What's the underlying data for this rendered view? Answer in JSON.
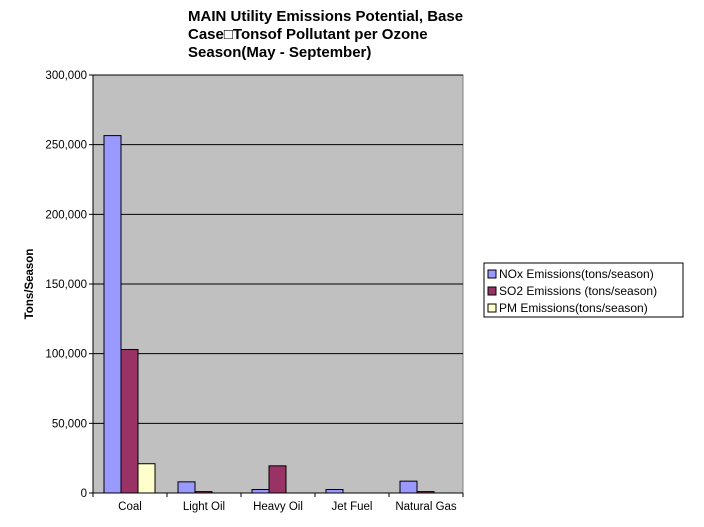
{
  "chart_data": {
    "type": "bar",
    "title_lines": [
      "MAIN Utility Emissions Potential, Base",
      "Case□Tonsof Pollutant per Ozone",
      "Season(May - September)"
    ],
    "title": "MAIN Utility Emissions Potential, Base Case□Tonsof Pollutant per Ozone Season(May - September)",
    "xlabel": "",
    "ylabel": "Tons/Season",
    "ylim": [
      0,
      300000
    ],
    "yticks": [
      0,
      50000,
      100000,
      150000,
      200000,
      250000,
      300000
    ],
    "ytick_labels": [
      "0",
      "50,000",
      "100,000",
      "150,000",
      "200,000",
      "250,000",
      "300,000"
    ],
    "categories": [
      "Coal",
      "Light Oil",
      "Heavy  Oil",
      "Jet Fuel",
      "Natural Gas"
    ],
    "series": [
      {
        "name": "NOx Emissions(tons/season)",
        "color": "#9999ff",
        "values": [
          256500,
          8000,
          2500,
          2500,
          8500
        ]
      },
      {
        "name": "SO2 Emissions (tons/season)",
        "color": "#993366",
        "values": [
          103000,
          1000,
          19500,
          0,
          1000
        ]
      },
      {
        "name": "PM Emissions(tons/season)",
        "color": "#ffffcc",
        "values": [
          21000,
          0,
          0,
          0,
          0
        ]
      }
    ],
    "grid": true,
    "legend_position": "right",
    "plot_background": "#c0c0c0"
  }
}
